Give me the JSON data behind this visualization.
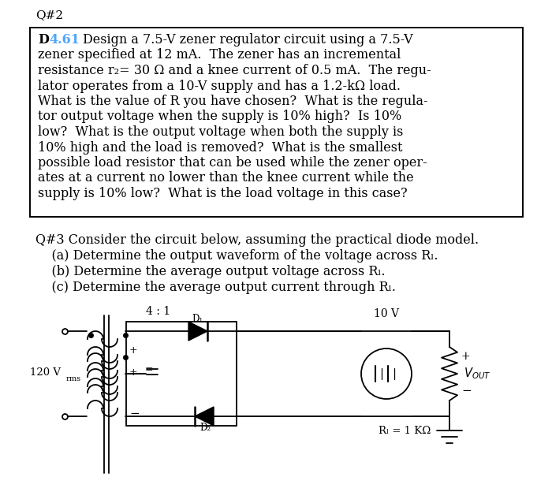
{
  "bg_color": "#ffffff",
  "q2_label": "Q#2",
  "box_num_color": "#4da6ff",
  "text_lines": [
    "D 4.61 Design a 7.5-V zener regulator circuit using a 7.5-V",
    "zener specified at 12 mA.  The zener has an incremental",
    "resistance r₂= 30 Ω and a knee current of 0.5 mA.  The regu-",
    "lator operates from a 10-V supply and has a 1.2-kΩ load.",
    "What is the value of R you have chosen?  What is the regula-",
    "tor output voltage when the supply is 10% high?  Is 10%",
    "low?  What is the output voltage when both the supply is",
    "10% high and the load is removed?  What is the smallest",
    "possible load resistor that can be used while the zener oper-",
    "ates at a current no lower than the knee current while the",
    "supply is 10% low?  What is the load voltage in this case?"
  ],
  "q3_lines": [
    "Q#3 Consider the circuit below, assuming the practical diode model.",
    "    (a) Determine the output waveform of the voltage across Rₗ.",
    "    (b) Determine the average output voltage across Rₗ.",
    "    (c) Determine the average output current through Rₗ."
  ],
  "ratio_label": "4 : 1",
  "v_source_label": "120 V",
  "battery_label": "10 V",
  "rl_label": "Rₗ = 1 KΩ",
  "d1_label": "D₁",
  "d2_label": "D₂",
  "plus": "+",
  "minus": "−",
  "vout_label": "V",
  "vout_sub": "OUT"
}
